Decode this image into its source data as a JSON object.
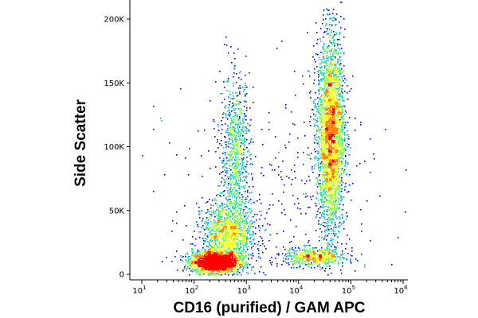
{
  "chart_data": {
    "type": "scatter",
    "style": "flow-cytometry-density-dot-plot",
    "xlabel": "CD16 (purified) / GAM APC",
    "ylabel": "Side Scatter",
    "x_scale": "log",
    "y_scale": "linear",
    "xlim": [
      10,
      1000000
    ],
    "ylim": [
      0,
      215000
    ],
    "x_ticks": [
      {
        "value": 10,
        "base": "10",
        "exp": "1"
      },
      {
        "value": 100,
        "base": "10",
        "exp": "2"
      },
      {
        "value": 1000,
        "base": "10",
        "exp": "3"
      },
      {
        "value": 10000,
        "base": "10",
        "exp": "4"
      },
      {
        "value": 100000,
        "base": "10",
        "exp": "5"
      },
      {
        "value": 1000000,
        "base": "10",
        "exp": "6"
      }
    ],
    "y_ticks": [
      {
        "value": 0,
        "label": "0"
      },
      {
        "value": 50000,
        "label": "50K"
      },
      {
        "value": 100000,
        "label": "100K"
      },
      {
        "value": 150000,
        "label": "150K"
      },
      {
        "value": 200000,
        "label": "200K"
      }
    ],
    "grid": false,
    "legend": "none",
    "density_colors": [
      "#0000cc",
      "#00a0ff",
      "#00e0a0",
      "#80ff40",
      "#ffff00",
      "#ff8000",
      "#ff0000"
    ],
    "populations": [
      {
        "x_center": 250,
        "y_center": 10000,
        "x_spread_decades": 0.22,
        "y_spread": 4000,
        "count": 2600
      },
      {
        "x_center": 450,
        "y_center": 32000,
        "x_spread_decades": 0.25,
        "y_spread": 13000,
        "count": 1300
      },
      {
        "x_center": 600,
        "y_center": 95000,
        "x_spread_decades": 0.14,
        "y_spread": 30000,
        "count": 800
      },
      {
        "x_center": 40000,
        "y_center": 110000,
        "x_spread_decades": 0.13,
        "y_spread": 38000,
        "count": 3200
      },
      {
        "x_center": 20000,
        "y_center": 14000,
        "x_spread_decades": 0.3,
        "y_spread": 3500,
        "count": 600
      },
      {
        "x_center": 3000,
        "y_center": 60000,
        "x_spread_decades": 1.0,
        "y_spread": 45000,
        "count": 350
      }
    ]
  }
}
